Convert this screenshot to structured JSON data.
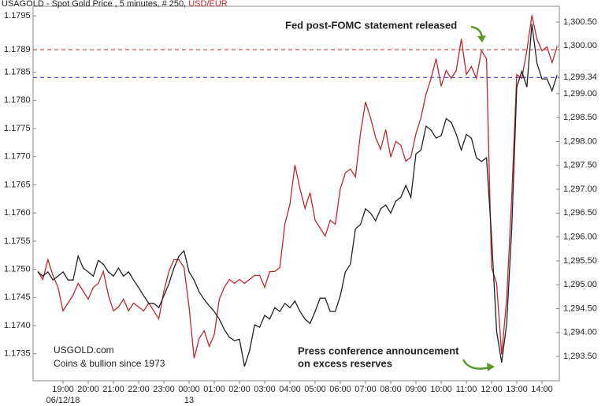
{
  "chart_data": {
    "type": "line",
    "title": "USAGOLD - Spot Gold Price , 5 minutes, # 250,",
    "title_highlight": "USD/EUR",
    "title_highlight_color": "#c0272d",
    "categories": [
      null,
      null,
      null,
      null,
      null,
      "19:00",
      null,
      null,
      null,
      null,
      "20:00",
      null,
      null,
      null,
      null,
      "21:00",
      null,
      null,
      null,
      null,
      "22:00",
      null,
      null,
      null,
      null,
      "23:00",
      null,
      null,
      null,
      null,
      "00:00",
      null,
      null,
      null,
      null,
      "01:00",
      null,
      null,
      null,
      null,
      "02:00",
      null,
      null,
      null,
      null,
      "03:00",
      null,
      null,
      null,
      null,
      "04:00",
      null,
      null,
      null,
      null,
      "05:00",
      null,
      null,
      null,
      null,
      "06:00",
      null,
      null,
      null,
      null,
      "07:00",
      null,
      null,
      null,
      null,
      "08:00",
      null,
      null,
      null,
      null,
      "09:00",
      null,
      null,
      null,
      null,
      "10:00",
      null,
      null,
      null,
      null,
      "11:00",
      null,
      null,
      null,
      null,
      "12:00",
      null,
      null,
      null,
      null,
      "13:00",
      null,
      null,
      null,
      null,
      "14:00",
      null,
      null,
      null
    ],
    "date_labels": [
      "06/12/18",
      "13"
    ],
    "series": [
      {
        "color": "#c0272d",
        "axis": "y",
        "values": [
          1.17496,
          1.17482,
          1.17517,
          1.17489,
          1.17468,
          1.17426,
          1.1744,
          1.17454,
          1.17475,
          1.17461,
          1.17447,
          1.17468,
          1.17475,
          1.17496,
          1.17454,
          1.17426,
          1.17433,
          1.17447,
          1.17426,
          1.1744,
          1.17433,
          1.17426,
          1.1744,
          1.17426,
          1.17412,
          1.17461,
          1.17496,
          1.17517,
          1.17517,
          1.17503,
          1.17433,
          1.17342,
          1.17377,
          1.17391,
          1.17363,
          1.17384,
          1.17447,
          1.17468,
          1.17482,
          1.17475,
          1.17482,
          1.17475,
          1.17482,
          1.17489,
          1.17489,
          1.17468,
          1.17496,
          1.17496,
          1.17503,
          1.1758,
          1.17615,
          1.17685,
          1.17643,
          1.17608,
          1.17636,
          1.17587,
          1.17573,
          1.17559,
          1.17587,
          1.1758,
          1.17643,
          1.17671,
          1.17678,
          1.17664,
          1.17741,
          1.17797,
          1.17769,
          1.17734,
          1.17713,
          1.17748,
          1.17699,
          1.17727,
          1.1772,
          1.17692,
          1.17699,
          1.17741,
          1.17769,
          1.17811,
          1.17839,
          1.17874,
          1.17825,
          1.17853,
          1.17839,
          1.17853,
          1.17909,
          1.17846,
          1.1786,
          1.17839,
          1.17888,
          1.17874,
          1.17503,
          1.17475,
          1.17349,
          1.17447,
          1.17629,
          1.17846,
          1.17839,
          1.17888,
          1.17951,
          1.17909,
          1.17888,
          1.17895,
          1.17867,
          1.17895
        ]
      },
      {
        "color": "#222222",
        "axis": "y2",
        "values": [
          1295.27,
          1295.18,
          1295.27,
          1295.1,
          1295.18,
          1295.27,
          1295.1,
          1295.1,
          1295.6,
          1295.35,
          1295.27,
          1295.18,
          1295.51,
          1295.43,
          1295.27,
          1295.18,
          1295.35,
          1295.18,
          1295.27,
          1295.1,
          1294.94,
          1294.77,
          1294.61,
          1294.61,
          1294.52,
          1294.77,
          1295.02,
          1295.35,
          1295.6,
          1295.71,
          1295.27,
          1295.1,
          1294.85,
          1294.69,
          1294.56,
          1294.44,
          1294.28,
          1294.06,
          1293.9,
          1293.83,
          1293.86,
          1293.29,
          1293.62,
          1294.16,
          1294.11,
          1294.36,
          1294.28,
          1294.52,
          1294.44,
          1294.61,
          1294.52,
          1294.66,
          1294.44,
          1294.28,
          1294.19,
          1294.44,
          1294.72,
          1294.72,
          1294.44,
          1294.44,
          1294.77,
          1295.27,
          1295.43,
          1296.17,
          1296.26,
          1296.59,
          1296.5,
          1296.34,
          1296.59,
          1296.67,
          1296.5,
          1296.75,
          1296.83,
          1297.08,
          1296.83,
          1297.74,
          1297.82,
          1298.32,
          1298.24,
          1298.07,
          1298.12,
          1298.48,
          1298.4,
          1298.15,
          1297.82,
          1298.15,
          1298.07,
          1297.66,
          1297.58,
          1297.66,
          1296.01,
          1294.03,
          1293.37,
          1294.19,
          1296.17,
          1299.14,
          1299.47,
          1299.14,
          1300.46,
          1299.64,
          1299.31,
          1299.31,
          1299.06,
          1299.39
        ]
      }
    ],
    "ylim": [
      1.17302,
      1.17967
    ],
    "yticks": [
      {
        "value": 1.1735,
        "label": "1.1735"
      },
      {
        "value": 1.174,
        "label": "1.1740"
      },
      {
        "value": 1.1745,
        "label": "1.1745"
      },
      {
        "value": 1.175,
        "label": "1.1750"
      },
      {
        "value": 1.1755,
        "label": "1.1755"
      },
      {
        "value": 1.176,
        "label": "1.1760"
      },
      {
        "value": 1.1765,
        "label": "1.1765"
      },
      {
        "value": 1.177,
        "label": "1.1770"
      },
      {
        "value": 1.1775,
        "label": "1.1775"
      },
      {
        "value": 1.178,
        "label": "1.1780"
      },
      {
        "value": 1.1785,
        "label": "1.1785"
      },
      {
        "value": 1.1795,
        "label": "1.1795"
      }
    ],
    "y2lim": [
      1292.99,
      1300.83
    ],
    "y2ticks": [
      {
        "value": 1293.5,
        "label": "1,293.50"
      },
      {
        "value": 1294,
        "label": "1,294.00"
      },
      {
        "value": 1294.5,
        "label": "1,294.50"
      },
      {
        "value": 1295,
        "label": "1,295.00"
      },
      {
        "value": 1295.5,
        "label": "1,295.50"
      },
      {
        "value": 1296,
        "label": "1,296.00"
      },
      {
        "value": 1296.5,
        "label": "1,296.50"
      },
      {
        "value": 1297,
        "label": "1,297.00"
      },
      {
        "value": 1297.5,
        "label": "1,297.50"
      },
      {
        "value": 1298,
        "label": "1,298.00"
      },
      {
        "value": 1298.5,
        "label": "1,298.50"
      },
      {
        "value": 1299,
        "label": "1,299.00"
      },
      {
        "value": 1300,
        "label": "1,300.00"
      },
      {
        "value": 1300.5,
        "label": "1,300.50"
      }
    ],
    "reference_lines": [
      {
        "value": 1.1789,
        "label": "1.1789",
        "axis": "y",
        "color": "#c0272d"
      },
      {
        "value": 1299.34,
        "label": "1,299.34",
        "axis": "y2",
        "color": "#2323e0"
      }
    ],
    "grid": false,
    "annotations": [
      "Fed post-FOMC statement released",
      "Press conference announcement",
      "on excess reserves"
    ],
    "watermark": [
      "USGOLD.com",
      "Coins & bullion since 1973"
    ]
  }
}
